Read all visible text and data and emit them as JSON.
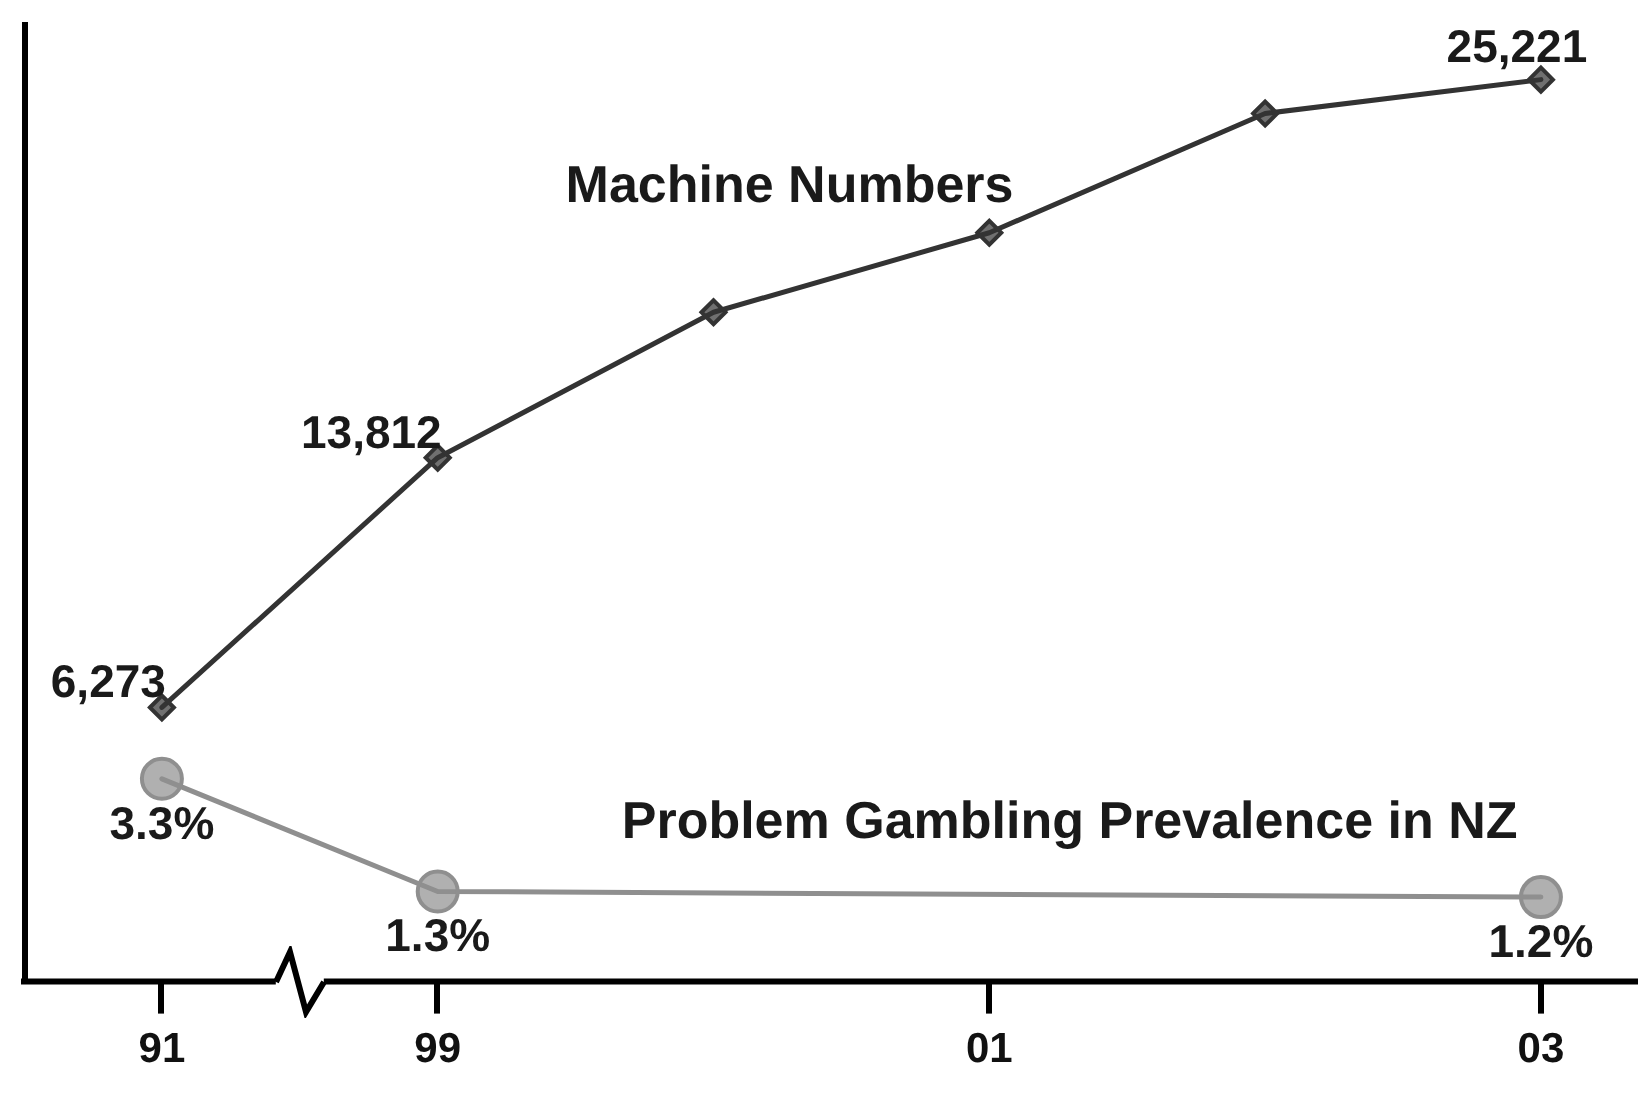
{
  "chart_data": {
    "type": "line",
    "categories": [
      "91",
      "99",
      null,
      "01",
      null,
      "03"
    ],
    "series": [
      {
        "name": "Machine Numbers",
        "color": "#333333",
        "marker": "diamond",
        "values": [
          6273,
          13812,
          18200,
          20600,
          24200,
          25221
        ],
        "value_labels": [
          "6,273",
          "13,812",
          null,
          null,
          null,
          "25,221"
        ]
      },
      {
        "name": "Problem Gambling Prevalence in NZ",
        "color": "#8f8f8f",
        "marker": "circle",
        "axis": "y2",
        "values": [
          3.3,
          1.3,
          null,
          null,
          null,
          1.2
        ],
        "value_labels": [
          "3.3%",
          "1.3%",
          null,
          null,
          null,
          "1.2%"
        ]
      }
    ],
    "ylim": [
      -2000,
      26900
    ],
    "y2lim": [
      -0.3,
      16.7
    ],
    "tick_labels": "x",
    "grid": false,
    "legend": false
  }
}
